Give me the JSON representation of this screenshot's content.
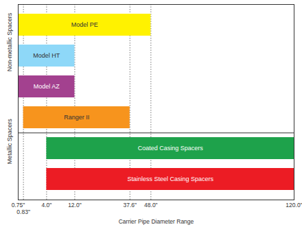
{
  "chart_data": {
    "type": "range_bar",
    "orientation": "horizontal",
    "xlabel": "Carrier Pipe Diameter Range",
    "categories": [
      "Model PE",
      "Model HT",
      "Model AZ",
      "Ranger II",
      "Coated Casing Spacers",
      "Stainless Steel Casing Spacers"
    ],
    "group": [
      "Non-metallic Spacers",
      "Non-metallic Spacers",
      "Non-metallic Spacers",
      "Non-metallic Spacers",
      "Metallic Spacers",
      "Metallic Spacers"
    ],
    "values": [
      [
        0.75,
        48
      ],
      [
        0.75,
        12
      ],
      [
        0.75,
        12
      ],
      [
        0.83,
        37.6
      ],
      [
        4,
        120
      ],
      [
        4,
        120
      ]
    ],
    "colors": [
      "#fff200",
      "#8ed8f8",
      "#a3418f",
      "#f7941d",
      "#1ea24b",
      "#ec1c24"
    ],
    "xlim": [
      0.75,
      120
    ],
    "xticks": [
      {
        "value": 0.75,
        "label": "0.75\""
      },
      {
        "value": 0.83,
        "label": "0.83\""
      },
      {
        "value": 4,
        "label": "4.0\""
      },
      {
        "value": 12,
        "label": "12.0\""
      },
      {
        "value": 37.6,
        "label": "37.6\""
      },
      {
        "value": 48,
        "label": "48.0\""
      },
      {
        "value": 120,
        "label": "120.0\""
      }
    ],
    "grid": true,
    "tick_labels": "x"
  }
}
